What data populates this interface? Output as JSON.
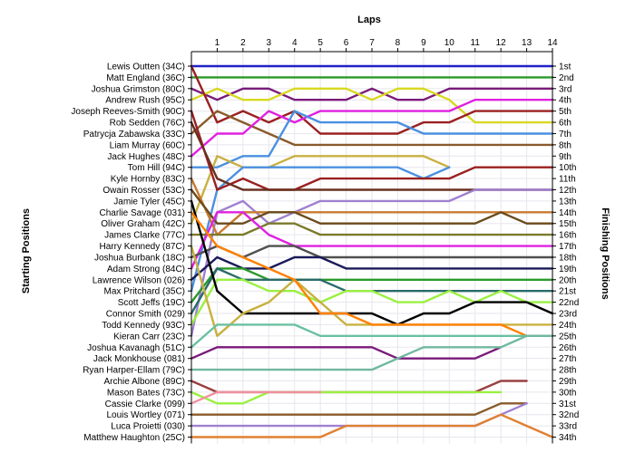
{
  "chart_data": {
    "type": "line",
    "x_title": "Laps",
    "left_title": "Starting Positions",
    "right_title": "Finishing Positions",
    "x_ticks": [
      1,
      2,
      3,
      4,
      5,
      6,
      7,
      8,
      9,
      10,
      11,
      12,
      13,
      14
    ],
    "xlim": [
      0,
      14
    ],
    "ylim": [
      1,
      34
    ],
    "drivers": [
      "Lewis Outten (34C)",
      "Matt England (36C)",
      "Joshua Grimston (80C)",
      "Andrew Rush (95C)",
      "Joseph Reeves-Smith (90C)",
      "Rob Sedden (76C)",
      "Patrycja Zabawska (33C)",
      "Liam Murray (60C)",
      "Jack Hughes (48C)",
      "Tom Hill (94C)",
      "Kyle Hornby (83C)",
      "Owain Rosser (53C)",
      "Jamie Tyler (45C)",
      "Charlie Savage (031)",
      "Oliver Graham (42C)",
      "James Clarke (77C)",
      "Harry Kennedy (87C)",
      "Joshua Burbank (18C)",
      "Adam Strong (84C)",
      "Lawrence Wilson (026)",
      "Max Pritchard (35C)",
      "Scott Jeffs (19C)",
      "Connor Smith (029)",
      "Todd Kennedy (93C)",
      "Kieran Carr (23C)",
      "Joshua Kavanagh (51C)",
      "Jack Monkhouse (081)",
      "Ryan Harper-Ellam (79C)",
      "Archie Albone (89C)",
      "Mason Bates (73C)",
      "Cassie Clarke (099)",
      "Louis Wortley (071)",
      "Luca Proietti (030)",
      "Matthew Haughton (25C)"
    ],
    "finishing_positions": [
      "1st",
      "2nd",
      "3rd",
      "4th",
      "5th",
      "6th",
      "7th",
      "8th",
      "9th",
      "10th",
      "11th",
      "12th",
      "13th",
      "14th",
      "15th",
      "16th",
      "17th",
      "18th",
      "19th",
      "20th",
      "21st",
      "22nd",
      "23rd",
      "24th",
      "25th",
      "26th",
      "27th",
      "28th",
      "29th",
      "30th",
      "31st",
      "32nd",
      "33rd",
      "34th"
    ],
    "series": [
      {
        "color": "#2020c8",
        "values": [
          1,
          1,
          1,
          1,
          1,
          1,
          1,
          1,
          1,
          1,
          1,
          1,
          1,
          1,
          1
        ]
      },
      {
        "color": "#2a9a2a",
        "values": [
          2,
          2,
          2,
          2,
          2,
          2,
          2,
          2,
          2,
          2,
          2,
          2,
          2,
          2,
          2
        ]
      },
      {
        "color": "#7a1a7a",
        "values": [
          3,
          4,
          3,
          3,
          4,
          4,
          4,
          3,
          4,
          4,
          3,
          3,
          3,
          3,
          3
        ]
      },
      {
        "color": "#d8d820",
        "values": [
          4,
          3,
          4,
          4,
          3,
          3,
          3,
          4,
          3,
          3,
          4,
          6,
          6,
          6,
          6
        ]
      },
      {
        "color": "#9a2020",
        "values": [
          1,
          6,
          5,
          6,
          5,
          7,
          7,
          7,
          7,
          6,
          6,
          5,
          5,
          5,
          5
        ]
      },
      {
        "color": "#8a5a2a",
        "values": [
          7,
          5,
          6,
          7,
          8,
          8,
          8,
          8,
          8,
          8,
          8,
          8,
          8,
          8,
          8
        ]
      },
      {
        "color": "#e020e0",
        "values": [
          9,
          7,
          7,
          5,
          6,
          5,
          5,
          5,
          5,
          5,
          5,
          4,
          4,
          4,
          4
        ]
      },
      {
        "color": "#4a90e0",
        "values": [
          10,
          10,
          9,
          9,
          5,
          6,
          6,
          6,
          6,
          7,
          7,
          7,
          7,
          7,
          7
        ]
      },
      {
        "color": "#c8b040",
        "values": [
          15,
          9,
          10,
          10,
          9,
          9,
          9,
          9,
          9,
          9,
          10
        ]
      },
      {
        "color": "#4a90e0",
        "values": [
          21,
          12,
          10,
          10,
          10,
          10,
          10,
          10,
          10,
          11,
          10
        ]
      },
      {
        "color": "#9a2020",
        "values": [
          5,
          12,
          11,
          12,
          12,
          11,
          11,
          11,
          11,
          11,
          11,
          10,
          10,
          10,
          10
        ]
      },
      {
        "color": "#6a3020",
        "values": [
          6,
          11,
          12,
          12,
          12,
          12,
          12,
          12,
          12,
          12,
          12,
          12,
          12,
          12,
          12
        ]
      },
      {
        "color": "#a080d0",
        "values": [
          25,
          14,
          13,
          15,
          14,
          13,
          13,
          13,
          13,
          13,
          13,
          12,
          12,
          12,
          12
        ]
      },
      {
        "color": "#c87a30",
        "values": [
          11,
          16,
          14,
          14,
          14,
          14,
          14,
          14,
          14,
          14,
          14,
          14,
          14,
          14,
          14
        ]
      },
      {
        "color": "#6a4a1a",
        "values": [
          12,
          15,
          15,
          14,
          14,
          15,
          15,
          15,
          15,
          15,
          15,
          15,
          14,
          15,
          15
        ]
      },
      {
        "color": "#7a7a2a",
        "values": [
          16,
          16,
          16,
          15,
          15,
          16,
          16,
          16,
          16,
          16,
          16,
          16,
          16,
          16,
          16
        ]
      },
      {
        "color": "#e020e0",
        "values": [
          19,
          14,
          14,
          16,
          17,
          17,
          17,
          17,
          17,
          17,
          17,
          17,
          17,
          17,
          17
        ]
      },
      {
        "color": "#505050",
        "values": [
          18,
          17,
          18,
          17,
          17,
          18,
          18,
          18,
          18,
          18,
          18,
          18,
          18,
          18,
          18
        ]
      },
      {
        "color": "#1a1a5a",
        "values": [
          20,
          18,
          19,
          19,
          18,
          18,
          19,
          19,
          19,
          19,
          19,
          19,
          19,
          19,
          19
        ]
      },
      {
        "color": "#2a9a2a",
        "values": [
          22,
          19,
          19,
          20,
          20,
          20,
          20,
          20,
          20,
          20,
          20,
          20,
          20,
          20,
          20
        ]
      },
      {
        "color": "#2a6a6a",
        "values": [
          23,
          19,
          20,
          20,
          20,
          20,
          21,
          21,
          21,
          21,
          21,
          21,
          21,
          21,
          21
        ]
      },
      {
        "color": "#9af040",
        "values": [
          24,
          20,
          20,
          21,
          21,
          22,
          21,
          21,
          22,
          22,
          21,
          22,
          21,
          22,
          22
        ]
      },
      {
        "color": "#000000",
        "values": [
          13,
          21,
          23,
          23,
          23,
          23,
          23,
          23,
          24,
          23,
          23,
          22,
          22,
          22,
          23
        ]
      },
      {
        "color": "#c8b040",
        "values": [
          17,
          25,
          23,
          22,
          20,
          22,
          24,
          24,
          24,
          24,
          24,
          24,
          24,
          24,
          24
        ]
      },
      {
        "color": "#ff8000",
        "values": [
          14,
          17,
          18,
          19,
          20,
          23,
          23,
          24,
          24,
          24,
          24,
          24,
          24,
          25
        ]
      },
      {
        "color": "#6ac0a0",
        "values": [
          26,
          24,
          24,
          24,
          24,
          25,
          25,
          25,
          25,
          25,
          25,
          25,
          25,
          25,
          25
        ]
      },
      {
        "color": "#7a1a7a",
        "values": [
          27,
          26,
          26,
          26,
          26,
          26,
          26,
          26,
          27,
          27,
          27,
          27,
          26
        ]
      },
      {
        "color": "#70b8a0",
        "values": [
          28,
          28,
          28,
          28,
          28,
          28,
          28,
          28,
          27,
          26,
          26,
          26,
          26,
          25,
          25
        ]
      },
      {
        "color": "#9a4040",
        "values": [
          29,
          30,
          30,
          30,
          30,
          30,
          30,
          30,
          30,
          30,
          30,
          30,
          29,
          29
        ]
      },
      {
        "color": "#9af040",
        "values": [
          30,
          31,
          31,
          30,
          30,
          30,
          30,
          30,
          30,
          30,
          30,
          30,
          30
        ]
      },
      {
        "color": "#f090a0",
        "values": [
          31,
          30,
          30,
          30,
          30,
          30
        ]
      },
      {
        "color": "#8a5a2a",
        "values": [
          32,
          32,
          32,
          32,
          32,
          32,
          32,
          32,
          32,
          32,
          32,
          32,
          31,
          31
        ]
      },
      {
        "color": "#a080d0",
        "values": [
          33,
          33,
          33,
          33,
          33,
          33,
          33,
          33,
          33,
          33,
          33,
          33,
          32,
          31
        ]
      },
      {
        "color": "#e08030",
        "values": [
          34,
          34,
          34,
          34,
          34,
          34,
          33,
          33,
          33,
          33,
          33,
          33,
          32,
          33,
          34
        ]
      }
    ]
  }
}
